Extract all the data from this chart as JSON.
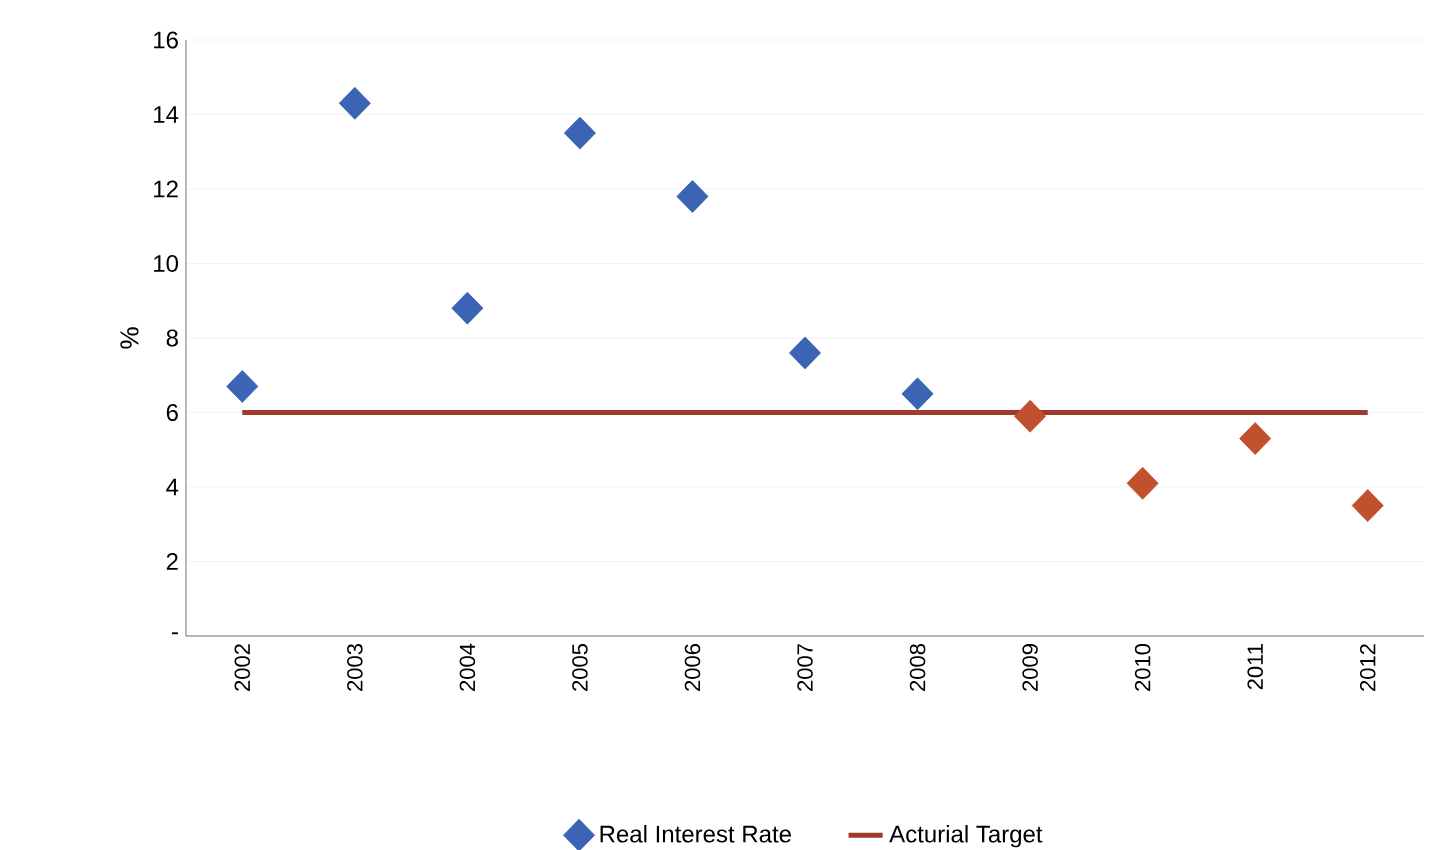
{
  "chart_data": {
    "type": "scatter",
    "ylabel": "%",
    "categories": [
      "2002",
      "2003",
      "2004",
      "2005",
      "2006",
      "2007",
      "2008",
      "2009",
      "2010",
      "2011",
      "2012"
    ],
    "series": [
      {
        "name": "Real Interest Rate",
        "marker": "diamond",
        "color": "#3b64b4",
        "colors": [
          "#3b64b4",
          "#3b64b4",
          "#3b64b4",
          "#3b64b4",
          "#3b64b4",
          "#3b64b4",
          "#3b64b4",
          "#c0502e",
          "#c0502e",
          "#c0502e",
          "#c0502e"
        ],
        "values": [
          6.7,
          14.3,
          8.8,
          13.5,
          11.8,
          7.6,
          6.5,
          5.9,
          4.1,
          5.3,
          3.5
        ]
      },
      {
        "name": "Acturial Target",
        "type": "line",
        "marker": "none",
        "color": "#9e3b2c",
        "values": [
          6,
          6,
          6,
          6,
          6,
          6,
          6,
          6,
          6,
          6,
          6
        ]
      }
    ],
    "ylim": [
      0,
      16
    ],
    "yticks": [
      {
        "value": 0,
        "label": "-"
      },
      2,
      4,
      6,
      8,
      10,
      12,
      14,
      16
    ],
    "grid": "y",
    "legend": "bottom"
  }
}
